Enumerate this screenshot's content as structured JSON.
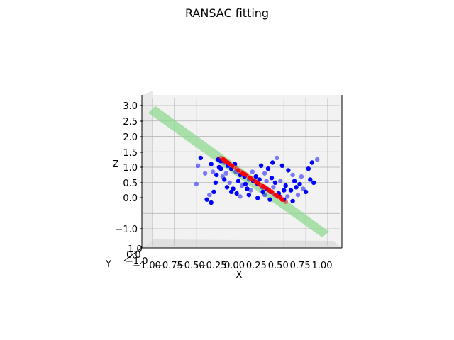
{
  "chart_data": {
    "type": "scatter",
    "projection": "3d",
    "title": "RANSAC fitting",
    "xlabel": "X",
    "ylabel": "Y",
    "zlabel": "Z",
    "xlim": [
      -1.0,
      1.0
    ],
    "ylim": [
      -1.0,
      1.0
    ],
    "zlim": [
      -1.0,
      3.0
    ],
    "xticks": [
      "−1.00",
      "−0.75",
      "−0.50",
      "−0.25",
      "0.00",
      "0.25",
      "0.50",
      "0.75",
      "1.00"
    ],
    "yticks": [
      "−1.0",
      "0.0",
      "1.0"
    ],
    "zticks": [
      "−1.0",
      "0.0",
      "0.5",
      "1.0",
      "1.5",
      "2.0",
      "2.5",
      "3.0"
    ],
    "grid": true,
    "colors": {
      "inliers": "#ff0000",
      "outliers": "#0000ff",
      "plane": "#90d890"
    },
    "series": [
      {
        "role": "outliers",
        "color": "#0000ff",
        "points": [
          [
            -0.48,
            1.05
          ],
          [
            -0.45,
            1.3
          ],
          [
            -0.33,
            1.1
          ],
          [
            -0.31,
            0.85
          ],
          [
            -0.27,
            0.75
          ],
          [
            -0.22,
            0.95
          ],
          [
            -0.2,
            0.7
          ],
          [
            -0.18,
            0.6
          ],
          [
            -0.15,
            0.35
          ],
          [
            -0.12,
            0.5
          ],
          [
            -0.1,
            0.2
          ],
          [
            -0.3,
            0.2
          ],
          [
            -0.35,
            0.1
          ],
          [
            -0.38,
            -0.05
          ],
          [
            -0.33,
            -0.15
          ],
          [
            -0.5,
            0.45
          ],
          [
            -0.25,
            1.25
          ],
          [
            -0.22,
            1.2
          ],
          [
            -0.18,
            1.15
          ],
          [
            -0.14,
            1.05
          ],
          [
            -0.1,
            0.95
          ],
          [
            -0.05,
            0.85
          ],
          [
            0.0,
            0.75
          ],
          [
            0.05,
            0.7
          ],
          [
            0.1,
            0.6
          ],
          [
            0.15,
            0.55
          ],
          [
            0.2,
            0.45
          ],
          [
            0.25,
            0.35
          ],
          [
            0.3,
            0.3
          ],
          [
            0.35,
            0.2
          ],
          [
            0.4,
            0.1
          ],
          [
            0.45,
            0.05
          ],
          [
            0.5,
            -0.05
          ],
          [
            0.02,
            0.4
          ],
          [
            0.06,
            0.45
          ],
          [
            0.08,
            0.3
          ],
          [
            0.12,
            0.25
          ],
          [
            0.18,
            0.7
          ],
          [
            0.22,
            0.6
          ],
          [
            0.28,
            0.8
          ],
          [
            0.32,
            0.95
          ],
          [
            0.37,
            1.15
          ],
          [
            0.42,
            1.3
          ],
          [
            0.48,
            1.05
          ],
          [
            0.55,
            0.9
          ],
          [
            0.6,
            0.75
          ],
          [
            0.62,
            0.55
          ],
          [
            0.68,
            0.45
          ],
          [
            0.72,
            0.3
          ],
          [
            0.78,
            0.95
          ],
          [
            0.82,
            1.15
          ],
          [
            0.88,
            1.25
          ],
          [
            0.8,
            0.6
          ],
          [
            0.75,
            0.2
          ],
          [
            0.66,
            0.1
          ],
          [
            0.58,
            0.25
          ],
          [
            0.52,
            0.4
          ],
          [
            0.46,
            0.55
          ],
          [
            0.4,
            0.5
          ],
          [
            0.36,
            0.65
          ],
          [
            0.3,
            0.55
          ],
          [
            -0.08,
            0.3
          ],
          [
            -0.04,
            0.15
          ],
          [
            0.0,
            0.05
          ],
          [
            0.1,
            0.1
          ],
          [
            0.2,
            0.0
          ],
          [
            0.28,
            0.1
          ],
          [
            0.34,
            -0.05
          ],
          [
            0.44,
            0.15
          ],
          [
            0.54,
            0.05
          ],
          [
            0.6,
            -0.1
          ],
          [
            -0.02,
            0.55
          ],
          [
            -0.16,
            0.8
          ],
          [
            -0.24,
            1.0
          ],
          [
            -0.06,
            1.1
          ],
          [
            0.14,
            0.85
          ],
          [
            0.24,
            1.05
          ],
          [
            0.26,
            0.2
          ],
          [
            0.38,
            0.35
          ],
          [
            0.5,
            0.25
          ],
          [
            0.64,
            0.35
          ],
          [
            0.7,
            0.7
          ],
          [
            0.84,
            0.5
          ],
          [
            -0.28,
            0.5
          ],
          [
            -0.4,
            0.8
          ]
        ]
      },
      {
        "role": "inliers",
        "color": "#ff0000",
        "points": [
          [
            -0.22,
            1.3
          ],
          [
            -0.17,
            1.2
          ],
          [
            -0.12,
            1.1
          ],
          [
            -0.07,
            1.0
          ],
          [
            -0.02,
            0.9
          ],
          [
            0.03,
            0.8
          ],
          [
            0.08,
            0.72
          ],
          [
            0.13,
            0.62
          ],
          [
            0.18,
            0.52
          ],
          [
            0.23,
            0.42
          ],
          [
            0.28,
            0.35
          ],
          [
            0.33,
            0.25
          ],
          [
            0.38,
            0.15
          ],
          [
            0.43,
            0.05
          ],
          [
            0.48,
            -0.05
          ],
          [
            0.52,
            -0.12
          ],
          [
            -0.19,
            1.25
          ],
          [
            -0.09,
            1.05
          ],
          [
            0.01,
            0.85
          ],
          [
            0.11,
            0.66
          ],
          [
            0.21,
            0.47
          ],
          [
            0.31,
            0.3
          ],
          [
            0.41,
            0.1
          ],
          [
            0.46,
            0.02
          ],
          [
            0.16,
            0.57
          ],
          [
            0.26,
            0.38
          ],
          [
            0.06,
            0.76
          ],
          [
            -0.04,
            0.95
          ],
          [
            -0.14,
            1.15
          ],
          [
            0.36,
            0.2
          ]
        ]
      }
    ],
    "plane": {
      "label": "",
      "color": "#90d890",
      "z_at_x": [
        [
          -1.0,
          2.85
        ],
        [
          1.0,
          -1.0
        ]
      ]
    }
  }
}
